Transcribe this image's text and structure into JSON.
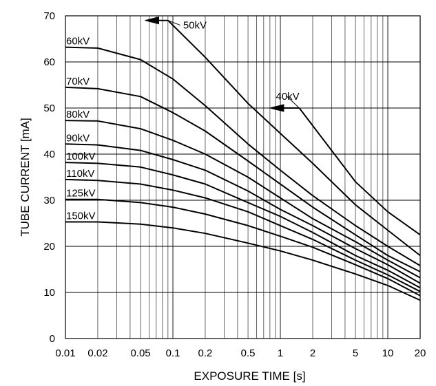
{
  "chart_data": {
    "type": "line",
    "title": "",
    "xlabel": "EXPOSURE TIME  [s]",
    "ylabel": "TUBE CURRENT  [mA]",
    "xscale": "log",
    "xlim": [
      0.01,
      20
    ],
    "ylim": [
      0,
      70
    ],
    "grid": true,
    "x_ticks": [
      0.01,
      0.02,
      0.05,
      0.1,
      0.2,
      0.5,
      1,
      2,
      5,
      10,
      20
    ],
    "x_tick_labels": [
      "0.01",
      "0.02",
      "0.05",
      "0.1",
      "0.2",
      "0.5",
      "1",
      "2",
      "5",
      "10",
      "20"
    ],
    "y_ticks": [
      0,
      10,
      20,
      30,
      40,
      50,
      60,
      70
    ],
    "y_tick_labels": [
      "0",
      "10",
      "20",
      "30",
      "40",
      "50",
      "60",
      "70"
    ],
    "series": [
      {
        "name": "40kV",
        "arrow_x": 0.8,
        "x": [
          1.5,
          5,
          10,
          20
        ],
        "y": [
          50,
          34,
          27.5,
          22.5
        ]
      },
      {
        "name": "50kV",
        "arrow_x": 0.055,
        "x": [
          0.09,
          0.2,
          0.5,
          1,
          2,
          5,
          10,
          20
        ],
        "y": [
          69,
          61,
          51,
          44.5,
          38,
          29,
          23.5,
          18
        ]
      },
      {
        "name": "60kV",
        "x": [
          0.01,
          0.02,
          0.05,
          0.1,
          0.2,
          0.5,
          1,
          2,
          5,
          10,
          20
        ],
        "y": [
          63.2,
          63,
          60.5,
          56.3,
          50.5,
          42.2,
          36.5,
          31,
          24.5,
          20,
          15.8
        ]
      },
      {
        "name": "70kV",
        "x": [
          0.01,
          0.02,
          0.05,
          0.1,
          0.2,
          0.5,
          1,
          2,
          5,
          10,
          20
        ],
        "y": [
          54.5,
          54.2,
          52.5,
          49,
          45,
          38.5,
          33.5,
          28.5,
          22.5,
          18,
          14.5
        ]
      },
      {
        "name": "80kV",
        "x": [
          0.01,
          0.02,
          0.05,
          0.1,
          0.2,
          0.5,
          1,
          2,
          5,
          10,
          20
        ],
        "y": [
          47.3,
          47.2,
          45.5,
          43,
          40,
          35,
          30.5,
          26,
          21,
          17,
          13.2
        ]
      },
      {
        "name": "90kV",
        "x": [
          0.01,
          0.02,
          0.05,
          0.1,
          0.2,
          0.5,
          1,
          2,
          5,
          10,
          20
        ],
        "y": [
          42.2,
          42,
          40.8,
          38.8,
          36.5,
          32,
          28,
          24.5,
          19.5,
          16,
          12
        ]
      },
      {
        "name": "100kV",
        "x": [
          0.01,
          0.02,
          0.05,
          0.1,
          0.2,
          0.5,
          1,
          2,
          5,
          10,
          20
        ],
        "y": [
          38.2,
          38,
          37.2,
          35.5,
          33.5,
          29.5,
          26.5,
          23,
          18,
          14.8,
          11
        ]
      },
      {
        "name": "110kV",
        "x": [
          0.01,
          0.02,
          0.05,
          0.1,
          0.2,
          0.5,
          1,
          2,
          5,
          10,
          20
        ],
        "y": [
          34.5,
          34.3,
          33.5,
          32.2,
          30.5,
          27.5,
          24.5,
          21.5,
          17,
          13.8,
          10.2
        ]
      },
      {
        "name": "125kV",
        "x": [
          0.01,
          0.02,
          0.05,
          0.1,
          0.2,
          0.5,
          1,
          2,
          5,
          10,
          20
        ],
        "y": [
          30.2,
          30.2,
          29.5,
          28.5,
          27,
          24.5,
          22.2,
          19.8,
          16,
          13,
          9.3
        ]
      },
      {
        "name": "150kV",
        "x": [
          0.01,
          0.02,
          0.05,
          0.1,
          0.2,
          0.5,
          1,
          2,
          5,
          10,
          20
        ],
        "y": [
          25.3,
          25.3,
          24.8,
          24,
          22.8,
          20.7,
          19,
          17,
          14,
          11.5,
          8.3
        ]
      }
    ]
  }
}
